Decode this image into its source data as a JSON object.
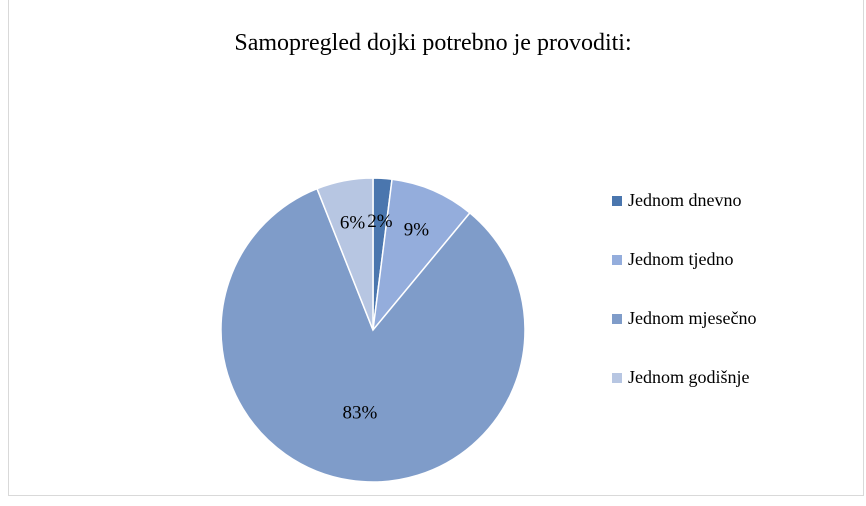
{
  "chart_data": {
    "type": "pie",
    "title": "Samopregled dojki potrebno je provoditi:",
    "categories": [
      "Jednom dnevno",
      "Jednom tjedno",
      "Jednom mjesečno",
      "Jednom godišnje"
    ],
    "values": [
      2,
      9,
      83,
      6
    ],
    "labels": [
      "2%",
      "9%",
      "83%",
      "6%"
    ],
    "colors": [
      "#4a76ae",
      "#94addc",
      "#7f9cc9",
      "#b7c6e2"
    ],
    "legend_position": "right",
    "label_position": "inside"
  }
}
